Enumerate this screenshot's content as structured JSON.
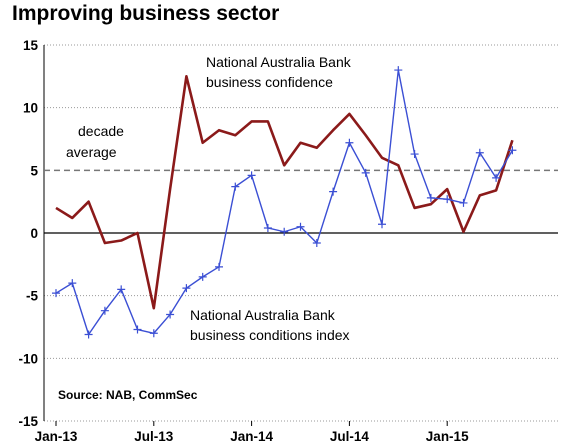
{
  "title": "Improving business sector",
  "chart_data": {
    "type": "line",
    "title": "Improving business sector",
    "ylim": [
      -15,
      15
    ],
    "yticks": [
      "15",
      "10",
      "5",
      "0",
      "-5",
      "-10",
      "-15"
    ],
    "xtick_labels": [
      "Jan-13",
      "Jul-13",
      "Jan-14",
      "Jul-14",
      "Jan-15"
    ],
    "decade_average": 5,
    "grid": "horizontal dotted",
    "x": [
      "Jan-13",
      "Feb-13",
      "Mar-13",
      "Apr-13",
      "May-13",
      "Jun-13",
      "Jul-13",
      "Aug-13",
      "Sep-13",
      "Oct-13",
      "Nov-13",
      "Dec-13",
      "Jan-14",
      "Feb-14",
      "Mar-14",
      "Apr-14",
      "May-14",
      "Jun-14",
      "Jul-14",
      "Aug-14",
      "Sep-14",
      "Oct-14",
      "Nov-14",
      "Dec-14",
      "Jan-15",
      "Feb-15",
      "Mar-15",
      "Apr-15",
      "May-15"
    ],
    "series": [
      {
        "name": "National Australia Bank business confidence",
        "color": "#8b1a1a",
        "marker": "none",
        "values": [
          2.0,
          1.2,
          2.5,
          -0.8,
          -0.6,
          0.0,
          -6.0,
          3.5,
          12.5,
          7.2,
          8.2,
          7.8,
          8.9,
          8.9,
          5.4,
          7.2,
          6.8,
          8.2,
          9.5,
          7.8,
          6.0,
          5.4,
          2.0,
          2.3,
          3.5,
          0.1,
          3.0,
          3.4,
          7.4
        ]
      },
      {
        "name": "National Australia Bank business conditions index",
        "color": "#3b4fd4",
        "marker": "plus",
        "values": [
          -4.8,
          -4.0,
          -8.1,
          -6.2,
          -4.5,
          -7.7,
          -8.0,
          -6.5,
          -4.4,
          -3.5,
          -2.7,
          3.7,
          4.6,
          0.4,
          0.1,
          0.5,
          -0.8,
          3.3,
          7.2,
          4.8,
          0.7,
          13.0,
          6.3,
          2.8,
          2.7,
          2.4,
          6.4,
          4.4,
          6.6
        ]
      }
    ],
    "annotations": {
      "confidence_label": [
        "National Australia Bank",
        "business confidence"
      ],
      "conditions_label": [
        "National Australia Bank",
        "business conditions index"
      ],
      "average_label": [
        "decade",
        "average"
      ],
      "source": "Source: NAB, CommSec"
    }
  }
}
